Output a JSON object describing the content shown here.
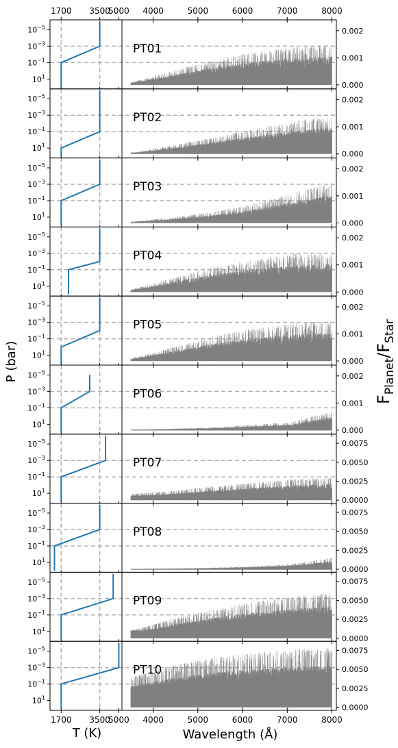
{
  "figure": {
    "ylabel_left": "P (bar)",
    "xlabel_left": "T (K)",
    "xlabel_right": "Wavelength (Å)",
    "ylabel_right_main": "F",
    "ylabel_right_sub1": "Planet",
    "ylabel_right_sep": "/F",
    "ylabel_right_sub2": "Star"
  },
  "chart_data": {
    "type": "line",
    "description_axes": {
      "temperature_ticks": [
        1700,
        3500,
        5000
      ],
      "temperature_tick_labels": [
        "1700",
        "3500",
        "5000"
      ],
      "temperature_scale": "log",
      "temperature_range": [
        1380,
        5300
      ],
      "pressure_ticks": [
        -5,
        -3,
        -1,
        1
      ],
      "pressure_range": [
        -6.2,
        2.2
      ],
      "reference_temperatures": [
        1700,
        3500
      ],
      "reference_pressures": [
        0.001,
        0.1
      ],
      "wavelength_ticks": [
        "4000",
        "5000",
        "6000",
        "7000",
        "8000"
      ],
      "wavelength_range": [
        3300,
        8100
      ]
    },
    "panels": [
      {
        "label": "PT01",
        "pt": [
          [
            1700,
            100
          ],
          [
            1700,
            0.1
          ],
          [
            3500,
            0.001
          ],
          [
            3500,
            1e-06
          ]
        ],
        "yticks": [
          "0.000",
          "0.001",
          "0.002"
        ],
        "yticks_v": [
          0,
          0.001,
          0.002
        ],
        "ylim": [
          -0.00015,
          0.0024
        ],
        "env": {
          "base": [
            5e-05,
            5e-05
          ],
          "hi": [
            9e-05,
            0.0005,
            0.0009,
            0.0012,
            0.0014,
            0.0015
          ]
        }
      },
      {
        "label": "PT02",
        "pt": [
          [
            1700,
            100
          ],
          [
            1700,
            10
          ],
          [
            3500,
            0.1
          ],
          [
            3500,
            1e-06
          ]
        ],
        "yticks": [
          "0.000",
          "0.001",
          "0.002"
        ],
        "yticks_v": [
          0,
          0.001,
          0.002
        ],
        "ylim": [
          -0.00015,
          0.0024
        ],
        "env": {
          "base": [
            5e-05,
            5e-05
          ],
          "hi": [
            3e-05,
            0.0003,
            0.0006,
            0.0009,
            0.0012,
            0.0014
          ]
        }
      },
      {
        "label": "PT03",
        "pt": [
          [
            1700,
            100
          ],
          [
            1700,
            0.1
          ],
          [
            3500,
            0.001
          ],
          [
            3500,
            1e-06
          ]
        ],
        "yticks": [
          "0.000",
          "0.001",
          "0.002"
        ],
        "yticks_v": [
          0,
          0.001,
          0.002
        ],
        "ylim": [
          -0.00015,
          0.0024
        ],
        "env": {
          "base": [
            2e-05,
            2e-05
          ],
          "hi": [
            5e-05,
            0.0002,
            0.0004,
            0.0007,
            0.0011,
            0.0015
          ]
        }
      },
      {
        "label": "PT04",
        "pt": [
          [
            1950,
            100
          ],
          [
            1950,
            0.1
          ],
          [
            3500,
            0.01
          ],
          [
            3500,
            1e-06
          ]
        ],
        "yticks": [
          "0.000",
          "0.001",
          "0.002"
        ],
        "yticks_v": [
          0,
          0.001,
          0.002
        ],
        "ylim": [
          -0.00015,
          0.0024
        ],
        "env": {
          "base": [
            5e-05,
            5e-05
          ],
          "hi": [
            9e-05,
            0.0005,
            0.0009,
            0.0012,
            0.0014,
            0.0015
          ]
        }
      },
      {
        "label": "PT05",
        "pt": [
          [
            1700,
            100
          ],
          [
            1700,
            1
          ],
          [
            3500,
            0.01
          ],
          [
            3500,
            1e-06
          ]
        ],
        "yticks": [
          "0.000",
          "0.001",
          "0.002"
        ],
        "yticks_v": [
          0,
          0.001,
          0.002
        ],
        "ylim": [
          -0.00015,
          0.0024
        ],
        "env": {
          "base": [
            5e-05,
            5e-05
          ],
          "hi": [
            9e-05,
            0.0005,
            0.0009,
            0.0012,
            0.0014,
            0.0015
          ]
        }
      },
      {
        "label": "PT06",
        "pt": [
          [
            1700,
            100
          ],
          [
            1700,
            0.1
          ],
          [
            2900,
            0.001
          ],
          [
            2900,
            1e-05
          ]
        ],
        "yticks": [
          "0.000",
          "0.001",
          "0.002"
        ],
        "yticks_v": [
          0,
          0.001,
          0.002
        ],
        "ylim": [
          -0.00015,
          0.0024
        ],
        "env": {
          "base": [
            1e-05,
            1e-05
          ],
          "hi": [
            2e-05,
            5e-05,
            0.0001,
            0.0002,
            0.0003,
            0.0007
          ]
        }
      },
      {
        "label": "PT07",
        "pt": [
          [
            1700,
            100
          ],
          [
            1700,
            0.1
          ],
          [
            3900,
            0.001
          ],
          [
            3900,
            1e-06
          ]
        ],
        "yticks": [
          "0.0000",
          "0.0025",
          "0.0050",
          "0.0075"
        ],
        "yticks_v": [
          0,
          0.0025,
          0.005,
          0.0075
        ],
        "ylim": [
          -0.0004,
          0.0087
        ],
        "env": {
          "base": [
            0.0004,
            0.0006
          ],
          "hi": [
            0.0008,
            0.0012,
            0.0018,
            0.0023,
            0.0028,
            0.003
          ]
        }
      },
      {
        "label": "PT08",
        "pt": [
          [
            1500,
            100
          ],
          [
            1500,
            0.1
          ],
          [
            3500,
            0.001
          ],
          [
            3500,
            1e-06
          ]
        ],
        "yticks": [
          "0.0000",
          "0.0025",
          "0.0050",
          "0.0075"
        ],
        "yticks_v": [
          0,
          0.0025,
          0.005,
          0.0075
        ],
        "ylim": [
          -0.0004,
          0.0087
        ],
        "env": {
          "base": [
            2e-05,
            2e-05
          ],
          "hi": [
            5e-05,
            0.0001,
            0.0002,
            0.0004,
            0.0007,
            0.0015
          ]
        }
      },
      {
        "label": "PT09",
        "pt": [
          [
            1700,
            100
          ],
          [
            1700,
            0.1
          ],
          [
            4500,
            0.001
          ],
          [
            4500,
            1e-06
          ]
        ],
        "yticks": [
          "0.0000",
          "0.0025",
          "0.0050",
          "0.0075"
        ],
        "yticks_v": [
          0,
          0.0025,
          0.005,
          0.0075
        ],
        "ylim": [
          -0.0004,
          0.0087
        ],
        "env": {
          "base": [
            0.001,
            0.0015
          ],
          "hi": [
            0.001,
            0.0025,
            0.0038,
            0.0048,
            0.0055,
            0.006
          ]
        }
      },
      {
        "label": "PT10",
        "pt": [
          [
            1700,
            100
          ],
          [
            1700,
            0.1
          ],
          [
            5000,
            0.001
          ],
          [
            5000,
            1e-06
          ]
        ],
        "yticks": [
          "0.0000",
          "0.0025",
          "0.0050",
          "0.0075"
        ],
        "yticks_v": [
          0,
          0.0025,
          0.005,
          0.0075
        ],
        "ylim": [
          -0.0004,
          0.0087
        ],
        "env": {
          "base": [
            0.002,
            0.0025
          ],
          "hi": [
            0.004,
            0.0055,
            0.0065,
            0.0072,
            0.0076,
            0.0078
          ]
        }
      }
    ],
    "colors": {
      "pt_line": "#1f77b4",
      "spectrum": "#808080",
      "reference_lines": "#b0b0b0"
    }
  }
}
